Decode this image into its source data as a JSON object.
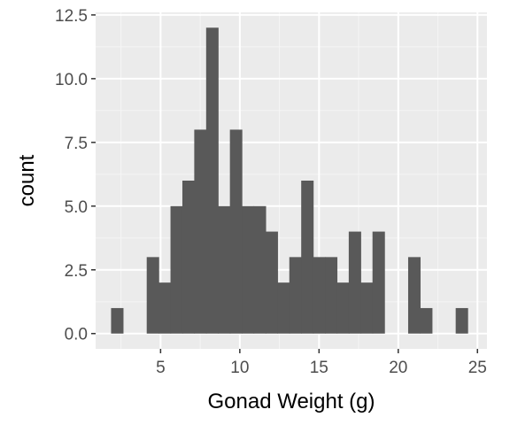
{
  "chart_data": {
    "type": "bar",
    "title": "",
    "xlabel": "Gonad Weight (g)",
    "ylabel": "count",
    "x_ticks": [
      5,
      10,
      15,
      20,
      25
    ],
    "x_tick_labels": [
      "5",
      "10",
      "15",
      "20",
      "25"
    ],
    "y_ticks": [
      0,
      2.5,
      5,
      7.5,
      10,
      12.5
    ],
    "y_tick_labels": [
      "0.0",
      "2.5",
      "5.0",
      "7.5",
      "10.0",
      "12.5"
    ],
    "xlim": [
      0.9,
      25.6
    ],
    "ylim": [
      -0.6,
      12.6
    ],
    "bin_width": 0.75,
    "bins": [
      {
        "x": 2.25,
        "count": 1
      },
      {
        "x": 3.0,
        "count": 0
      },
      {
        "x": 3.75,
        "count": 0
      },
      {
        "x": 4.5,
        "count": 3
      },
      {
        "x": 5.25,
        "count": 2
      },
      {
        "x": 6.0,
        "count": 5
      },
      {
        "x": 6.75,
        "count": 6
      },
      {
        "x": 7.5,
        "count": 8
      },
      {
        "x": 8.25,
        "count": 12
      },
      {
        "x": 9.0,
        "count": 5
      },
      {
        "x": 9.75,
        "count": 8
      },
      {
        "x": 10.5,
        "count": 5
      },
      {
        "x": 11.25,
        "count": 5
      },
      {
        "x": 12.0,
        "count": 4
      },
      {
        "x": 12.75,
        "count": 2
      },
      {
        "x": 13.5,
        "count": 3
      },
      {
        "x": 14.25,
        "count": 6
      },
      {
        "x": 15.0,
        "count": 3
      },
      {
        "x": 15.75,
        "count": 3
      },
      {
        "x": 16.5,
        "count": 2
      },
      {
        "x": 17.25,
        "count": 4
      },
      {
        "x": 18.0,
        "count": 2
      },
      {
        "x": 18.75,
        "count": 4
      },
      {
        "x": 19.5,
        "count": 0
      },
      {
        "x": 20.25,
        "count": 0
      },
      {
        "x": 21.0,
        "count": 3
      },
      {
        "x": 21.75,
        "count": 1
      },
      {
        "x": 22.5,
        "count": 0
      },
      {
        "x": 23.25,
        "count": 0
      },
      {
        "x": 24.0,
        "count": 1
      }
    ],
    "grid": true,
    "colors": {
      "panel_background": "#ebebeb",
      "grid_major": "#ffffff",
      "grid_minor": "#f5f5f5",
      "bar_fill": "#595959",
      "tick_text": "#4d4d4d",
      "tick_mark": "#333333",
      "axis_title": "#000000"
    }
  }
}
